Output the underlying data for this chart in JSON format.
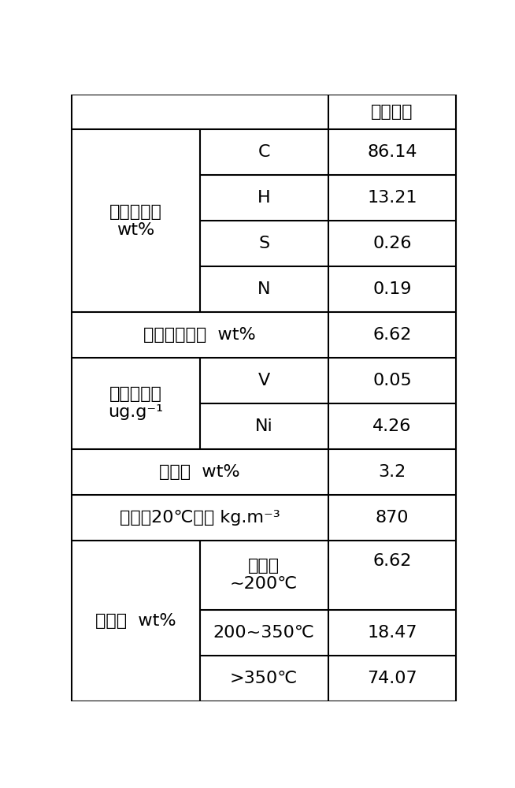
{
  "bg_color": "#ffffff",
  "line_color": "#000000",
  "text_color": "#000000",
  "col3_header": "大庆原油",
  "elem_label": "元素组成，\nwt%",
  "naphtha_label": "石脑油含量，  wt%",
  "metal_label": "金属含量，\nug.g⁻¹",
  "coke_label": "残炭，  wt%",
  "density_label": "密度（20℃）， kg.m⁻³",
  "fraction_label": "馏程，  wt%",
  "rows_col2": [
    "C",
    "H",
    "S",
    "N",
    "",
    "V",
    "Ni",
    "",
    "",
    "初馏点\n~200℃",
    "200~350℃",
    ">350℃"
  ],
  "rows_col3": [
    "86.14",
    "13.21",
    "0.26",
    "0.19",
    "6.62",
    "0.05",
    "4.26",
    "3.2",
    "870",
    "6.62",
    "18.47",
    "74.07"
  ],
  "font_size": 16,
  "lw": 1.5
}
